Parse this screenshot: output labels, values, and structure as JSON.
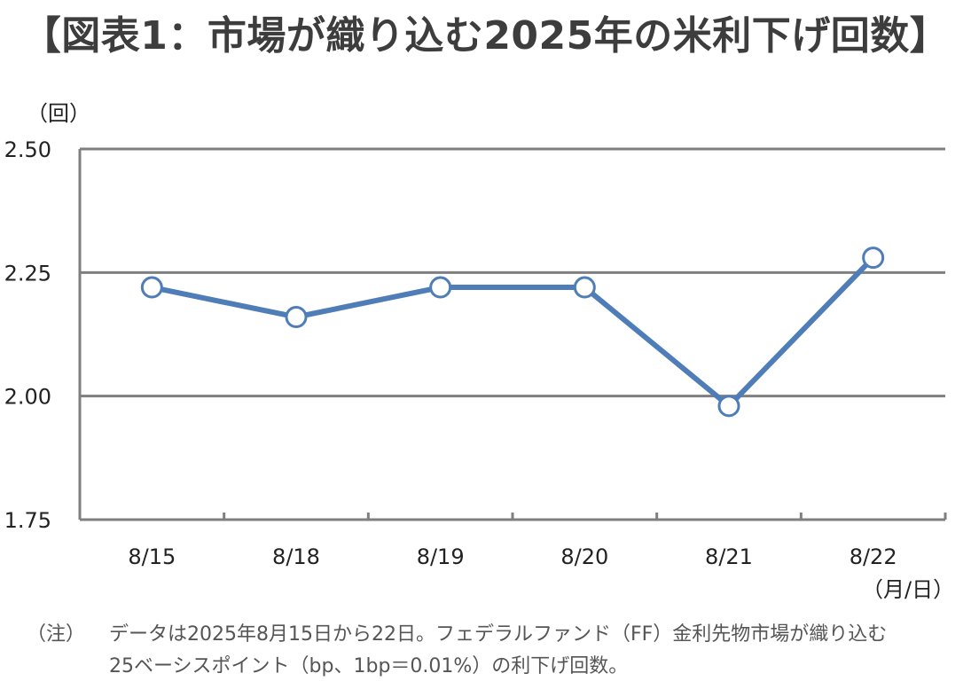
{
  "title": "【図表1：市場が織り込む2025年の米利下げ回数】",
  "y_unit": "（回）",
  "x_unit": "（月/日）",
  "note": {
    "label": "（注）",
    "line1": "データは2025年8月15日から22日。フェデラルファンド（FF）金利先物市場が織り込む",
    "line2": "25ベーシスポイント（bp、1bp＝0.01%）の利下げ回数。"
  },
  "colors": {
    "line": "#4f7db8",
    "gridline": "#7f7f7f",
    "marker_fill": "#ffffff"
  },
  "chart_data": {
    "type": "line",
    "title": "【図表1：市場が織り込む2025年の米利下げ回数】",
    "xlabel": "（月/日）",
    "ylabel": "（回）",
    "categories": [
      "8/15",
      "8/18",
      "8/19",
      "8/20",
      "8/21",
      "8/22"
    ],
    "series": [
      {
        "values": [
          2.22,
          2.16,
          2.22,
          2.22,
          1.98,
          2.28
        ]
      }
    ],
    "ylim": [
      1.75,
      2.5
    ],
    "yticks": [
      1.75,
      2.0,
      2.25,
      2.5
    ],
    "ytick_labels": [
      "1.75",
      "2.00",
      "2.25",
      "2.50"
    ],
    "grid": "horizontal",
    "markers": "hollow-circle"
  }
}
